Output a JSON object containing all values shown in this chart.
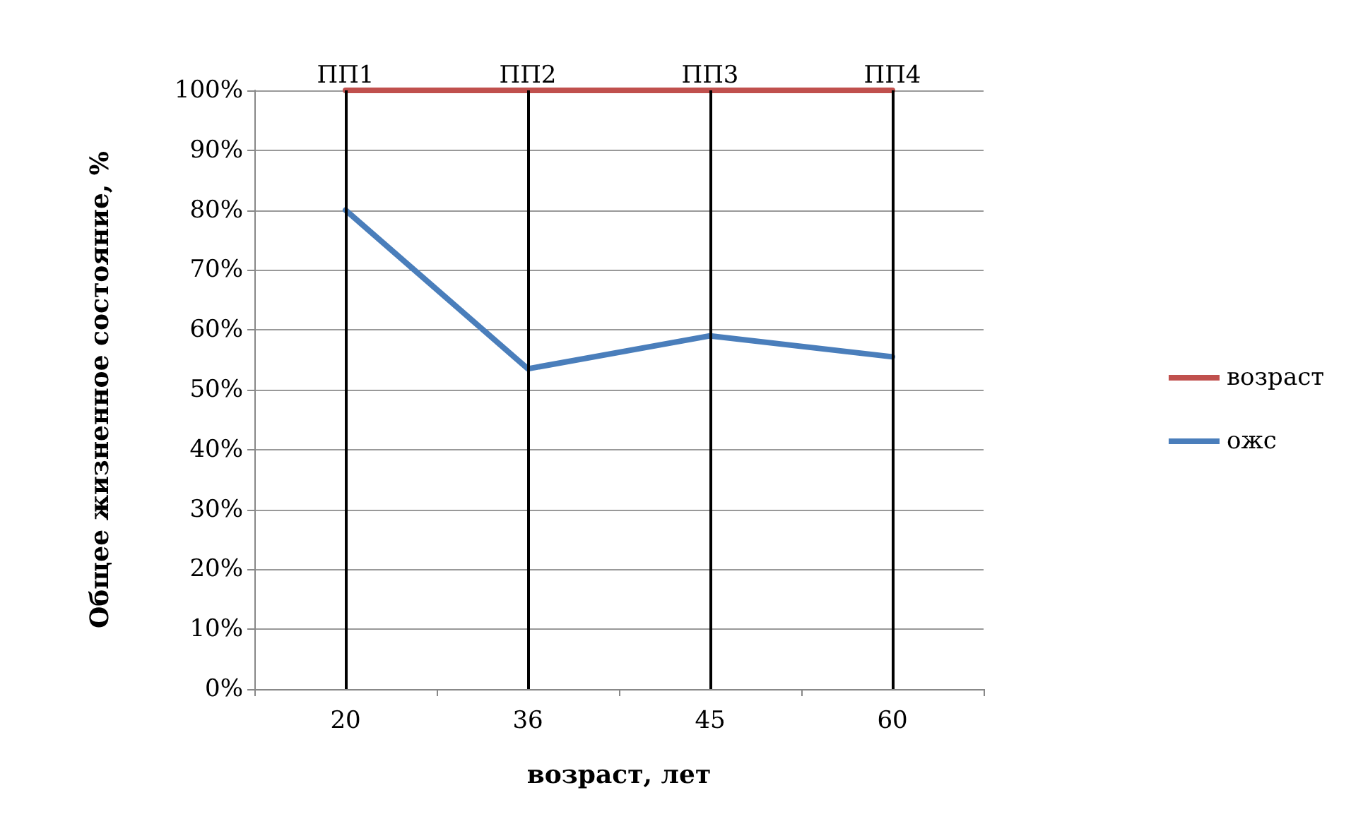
{
  "chart_data": {
    "type": "line",
    "xlabel": "возраст, лет",
    "ylabel": "Общее жизненное состояние, %",
    "categories": [
      "20",
      "36",
      "45",
      "60"
    ],
    "series": [
      {
        "name": "возраст",
        "color": "#c0504d",
        "values": [
          100,
          100,
          100,
          100
        ]
      },
      {
        "name": "ожс",
        "color": "#4a7ebb",
        "values": [
          80,
          53.5,
          59,
          55.5
        ]
      }
    ],
    "ylim": [
      0,
      100
    ],
    "yticks": [
      {
        "value": 0,
        "label": "0%"
      },
      {
        "value": 10,
        "label": "10%"
      },
      {
        "value": 20,
        "label": "20%"
      },
      {
        "value": 30,
        "label": "30%"
      },
      {
        "value": 40,
        "label": "40%"
      },
      {
        "value": 50,
        "label": "50%"
      },
      {
        "value": 60,
        "label": "60%"
      },
      {
        "value": 70,
        "label": "70%"
      },
      {
        "value": 80,
        "label": "80%"
      },
      {
        "value": 90,
        "label": "90%"
      },
      {
        "value": 100,
        "label": "100%"
      }
    ],
    "ref_lines": [
      {
        "axis": "x",
        "value": "20",
        "label": "ПП1",
        "color": "#000000"
      },
      {
        "axis": "x",
        "value": "36",
        "label": "ПП2",
        "color": "#000000"
      },
      {
        "axis": "x",
        "value": "45",
        "label": "ПП3",
        "color": "#000000"
      },
      {
        "axis": "x",
        "value": "60",
        "label": "ПП4",
        "color": "#000000"
      }
    ],
    "grid": "y",
    "legend": "right",
    "marker": "none",
    "line_style": "solid"
  }
}
